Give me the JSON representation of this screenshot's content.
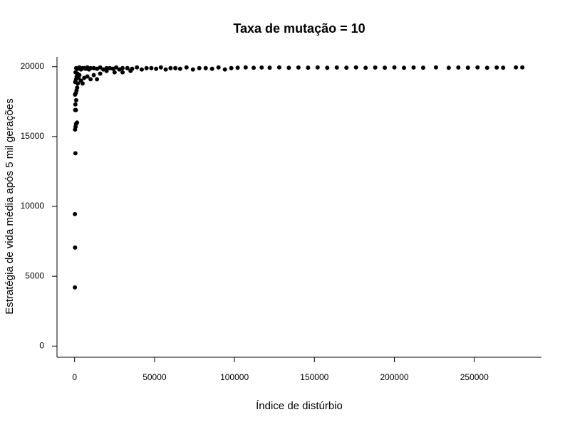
{
  "chart_data": {
    "type": "scatter",
    "title": "Taxa de mutação = 10",
    "x_label": "Índice de distúrbio",
    "y_label": "Estratégia de vida média após 5 mil gerações",
    "color": "#000000",
    "xlim": [
      -11000,
      292000
    ],
    "ylim": [
      -800,
      20700
    ],
    "xticks": [
      0,
      50000,
      100000,
      150000,
      200000,
      250000
    ],
    "yticks": [
      0,
      5000,
      10000,
      15000,
      20000
    ],
    "x": [
      200,
      300,
      200,
      500,
      300,
      600,
      900,
      1500,
      400,
      800,
      500,
      1000,
      300,
      700,
      1200,
      1600,
      2000,
      400,
      900,
      1300,
      2500,
      3000,
      1800,
      600,
      4000,
      5000,
      6000,
      8000,
      10000,
      12000,
      14000,
      16000,
      20000,
      25000,
      30000,
      35000,
      1000,
      2000,
      3000,
      4000,
      5000,
      6000,
      7000,
      8000,
      9000,
      10000,
      12000,
      14000,
      16000,
      18000,
      20000,
      22000,
      24000,
      26000,
      28000,
      30000,
      33000,
      36000,
      39000,
      42000,
      45000,
      48000,
      51000,
      54000,
      57000,
      60000,
      63000,
      66000,
      70000,
      74000,
      78000,
      82000,
      86000,
      90000,
      94000,
      98000,
      102000,
      107000,
      112000,
      117000,
      122000,
      128000,
      134000,
      140000,
      146000,
      152000,
      158000,
      164000,
      170000,
      176000,
      182000,
      188000,
      194000,
      200000,
      206000,
      212000,
      218000,
      226000,
      234000,
      240000,
      246000,
      252000,
      258000,
      264000,
      268000,
      276000,
      280000
    ],
    "values": [
      4200,
      7050,
      9450,
      13800,
      15500,
      15700,
      15900,
      16000,
      16900,
      16900,
      17300,
      17600,
      18000,
      18100,
      18300,
      18500,
      18800,
      18900,
      19100,
      19300,
      19200,
      19400,
      19500,
      19600,
      19000,
      18800,
      19200,
      19300,
      19100,
      19400,
      19100,
      19500,
      19700,
      19600,
      19600,
      19700,
      19900,
      19850,
      19950,
      19800,
      19900,
      19900,
      19850,
      19950,
      19800,
      19900,
      19900,
      19850,
      19950,
      19800,
      19900,
      19900,
      19850,
      19950,
      19800,
      19900,
      19900,
      19850,
      19950,
      19800,
      19900,
      19900,
      19850,
      19950,
      19800,
      19900,
      19900,
      19850,
      19950,
      19800,
      19900,
      19900,
      19850,
      19950,
      19800,
      19900,
      19930,
      19950,
      19920,
      19940,
      19930,
      19950,
      19920,
      19940,
      19930,
      19950,
      19920,
      19940,
      19930,
      19950,
      19920,
      19940,
      19930,
      19950,
      19920,
      19940,
      19930,
      19950,
      19920,
      19940,
      19930,
      19950,
      19920,
      19940,
      19930,
      19950,
      19950
    ]
  }
}
